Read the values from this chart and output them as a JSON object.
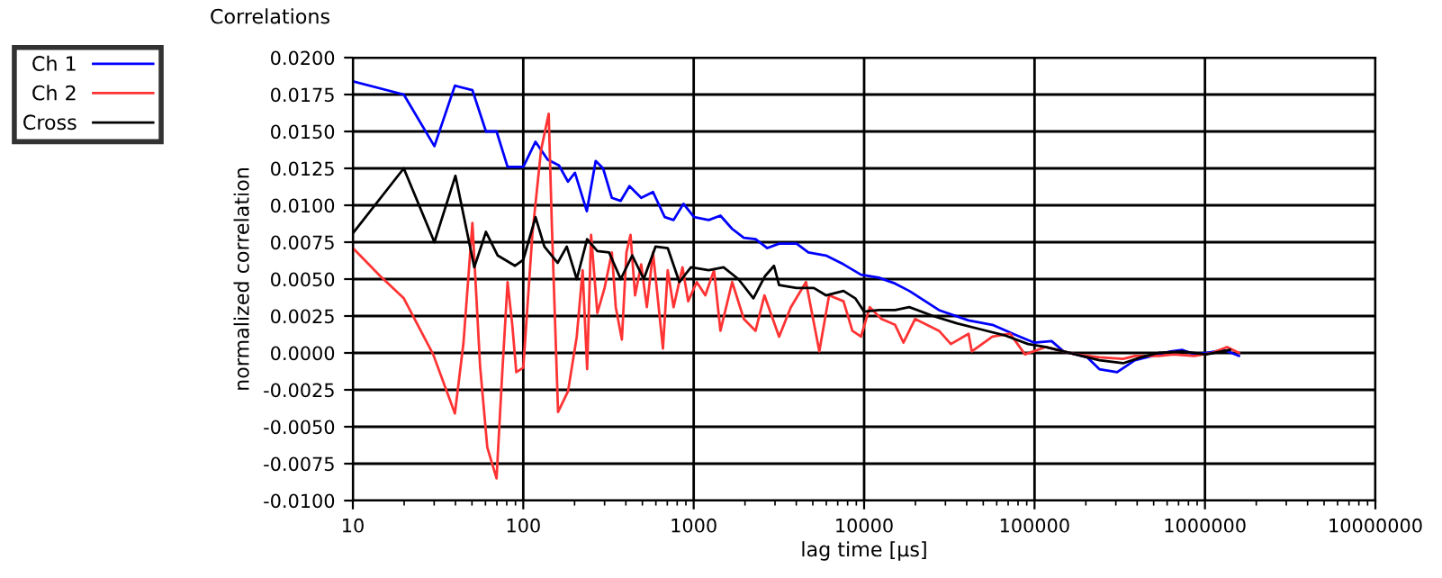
{
  "chart_data": {
    "type": "line",
    "title": "Correlations",
    "xlabel": "lag time [µs]",
    "ylabel": "normalized correlation",
    "log": "x",
    "grid": true,
    "legend": "top left",
    "marker": "none",
    "line_style": "solid",
    "xlim": [
      10,
      10000000
    ],
    "xticks": [
      10,
      100,
      1000,
      10000,
      100000,
      1000000,
      10000000
    ],
    "ylim": [
      -0.01,
      0.02
    ],
    "yticks": [
      {
        "value": -0.01,
        "label": "-0.0100"
      },
      {
        "value": -0.0075,
        "label": "-0.0075"
      },
      {
        "value": -0.005,
        "label": "-0.0050"
      },
      {
        "value": -0.0025,
        "label": "-0.0025"
      },
      {
        "value": 0,
        "label": "0.0000"
      },
      {
        "value": 0.0025,
        "label": "0.0025"
      },
      {
        "value": 0.005,
        "label": "0.0050"
      },
      {
        "value": 0.0075,
        "label": "0.0075"
      },
      {
        "value": 0.01,
        "label": "0.0100"
      },
      {
        "value": 0.0125,
        "label": "0.0125"
      },
      {
        "value": 0.015,
        "label": "0.0150"
      },
      {
        "value": 0.0175,
        "label": "0.0175"
      },
      {
        "value": 0.02,
        "label": "0.0200"
      }
    ],
    "series": [
      {
        "name": "Ch 1",
        "color": "#0000ff",
        "x": [
          10,
          19.9,
          30.1,
          39.7,
          50.3,
          60.4,
          69.7,
          80.9,
          100,
          118,
          139,
          162,
          183,
          201,
          236,
          266,
          294,
          331,
          373,
          420,
          492,
          577,
          676,
          762,
          871,
          1005,
          1225,
          1435,
          1682,
          1968,
          2307,
          2704,
          3170,
          4018,
          4710,
          5970,
          7570,
          9590,
          12190,
          15200,
          18400,
          27500,
          41000,
          56600,
          78000,
          99300,
          126000,
          148000,
          204000,
          240000,
          305000,
          388000,
          535000,
          628000,
          738000,
          866000,
          1016000,
          1294000,
          1581000
        ],
        "values": [
          0.0184,
          0.0175,
          0.014,
          0.0181,
          0.0178,
          0.015,
          0.015,
          0.0126,
          0.0126,
          0.0143,
          0.0131,
          0.0127,
          0.0116,
          0.0122,
          0.0096,
          0.013,
          0.0125,
          0.0105,
          0.0103,
          0.0113,
          0.0105,
          0.0109,
          0.0092,
          0.009,
          0.0101,
          0.0092,
          0.009,
          0.0093,
          0.0084,
          0.0078,
          0.0077,
          0.0071,
          0.0074,
          0.0074,
          0.0068,
          0.0066,
          0.006,
          0.0053,
          0.0051,
          0.0047,
          0.0042,
          0.0029,
          0.0022,
          0.0019,
          0.0012,
          0.0007,
          0.0008,
          0.0001,
          -0.0003,
          -0.0011,
          -0.0013,
          -0.0005,
          -0.0001,
          0.0001,
          0.0002,
          -0.0001,
          0.0,
          0.0002,
          -0.0002
        ]
      },
      {
        "name": "Ch 2",
        "color": "#ff3333",
        "x": [
          10,
          14.5,
          19.9,
          29.6,
          39.7,
          44.6,
          50.3,
          55.8,
          61.5,
          69.7,
          74.9,
          80.9,
          86.2,
          91,
          100,
          113,
          127,
          141,
          147,
          160,
          183,
          206,
          223,
          237,
          250,
          272,
          300,
          331,
          349,
          379,
          403,
          426,
          453,
          492,
          531,
          577,
          613,
          660,
          704,
          762,
          860,
          928,
          1042,
          1170,
          1316,
          1435,
          1682,
          1968,
          2307,
          2600,
          3170,
          3716,
          4560,
          5460,
          6230,
          7570,
          8530,
          9590,
          10790,
          12640,
          15200,
          17000,
          19900,
          27500,
          32300,
          41000,
          42800,
          56600,
          71900,
          87900,
          116000,
          174000,
          240000,
          331000,
          388000,
          535000,
          653000,
          866000,
          1100000,
          1346000,
          1581000
        ],
        "values": [
          0.0071,
          0.0052,
          0.0037,
          -0.0001,
          -0.0041,
          0.0007,
          0.0088,
          -0.0009,
          -0.0064,
          -0.0085,
          -0.0018,
          0.0048,
          0.0019,
          -0.0013,
          -0.001,
          0.008,
          0.0137,
          0.0162,
          0.0088,
          -0.004,
          -0.0026,
          0.0011,
          0.0056,
          -0.0011,
          0.008,
          0.0027,
          0.0044,
          0.0068,
          0.0031,
          0.0009,
          0.0068,
          0.008,
          0.0039,
          0.006,
          0.0031,
          0.0068,
          0.0039,
          0.0003,
          0.0056,
          0.0031,
          0.0058,
          0.0035,
          0.0048,
          0.0039,
          0.0056,
          0.0015,
          0.0048,
          0.0023,
          0.0015,
          0.0039,
          0.0011,
          0.0031,
          0.0048,
          0.0001,
          0.0039,
          0.0035,
          0.0015,
          0.0011,
          0.0031,
          0.0023,
          0.0019,
          0.0007,
          0.0023,
          0.0015,
          0.0006,
          0.0013,
          0.0001,
          0.0011,
          0.0013,
          -0.0001,
          0.0004,
          -0.0001,
          -0.0003,
          -0.0004,
          -0.0002,
          -0.0002,
          -0.0001,
          -0.0002,
          0.0,
          0.0004,
          0.0
        ]
      },
      {
        "name": "Cross",
        "color": "#000000",
        "x": [
          10,
          19.9,
          30.1,
          40,
          51.6,
          60.4,
          70.8,
          89.5,
          100,
          118,
          133,
          159,
          180,
          206,
          237,
          272,
          319,
          373,
          436,
          509,
          597,
          704,
          824,
          964,
          1225,
          1497,
          1830,
          2240,
          2620,
          2960,
          3170,
          4018,
          5070,
          5970,
          7570,
          8870,
          9990,
          12190,
          15200,
          18400,
          25400,
          35000,
          48200,
          66400,
          91600,
          116000,
          174000,
          240000,
          331000,
          421000,
          535000,
          738000,
          1016000,
          1400000
        ],
        "values": [
          0.0081,
          0.0125,
          0.0075,
          0.012,
          0.0058,
          0.0082,
          0.0066,
          0.0059,
          0.0063,
          0.0092,
          0.0072,
          0.0061,
          0.0072,
          0.005,
          0.0077,
          0.0069,
          0.0068,
          0.005,
          0.0066,
          0.005,
          0.0072,
          0.0071,
          0.0048,
          0.0058,
          0.0056,
          0.0058,
          0.005,
          0.0037,
          0.0052,
          0.0059,
          0.0046,
          0.0044,
          0.0044,
          0.0039,
          0.0042,
          0.0037,
          0.0028,
          0.0029,
          0.0029,
          0.0031,
          0.0025,
          0.002,
          0.0016,
          0.0012,
          0.0006,
          0.0004,
          -0.0001,
          -0.0005,
          -0.0007,
          -0.0003,
          0.0,
          0.0001,
          -0.0001,
          0.0002
        ]
      }
    ]
  }
}
